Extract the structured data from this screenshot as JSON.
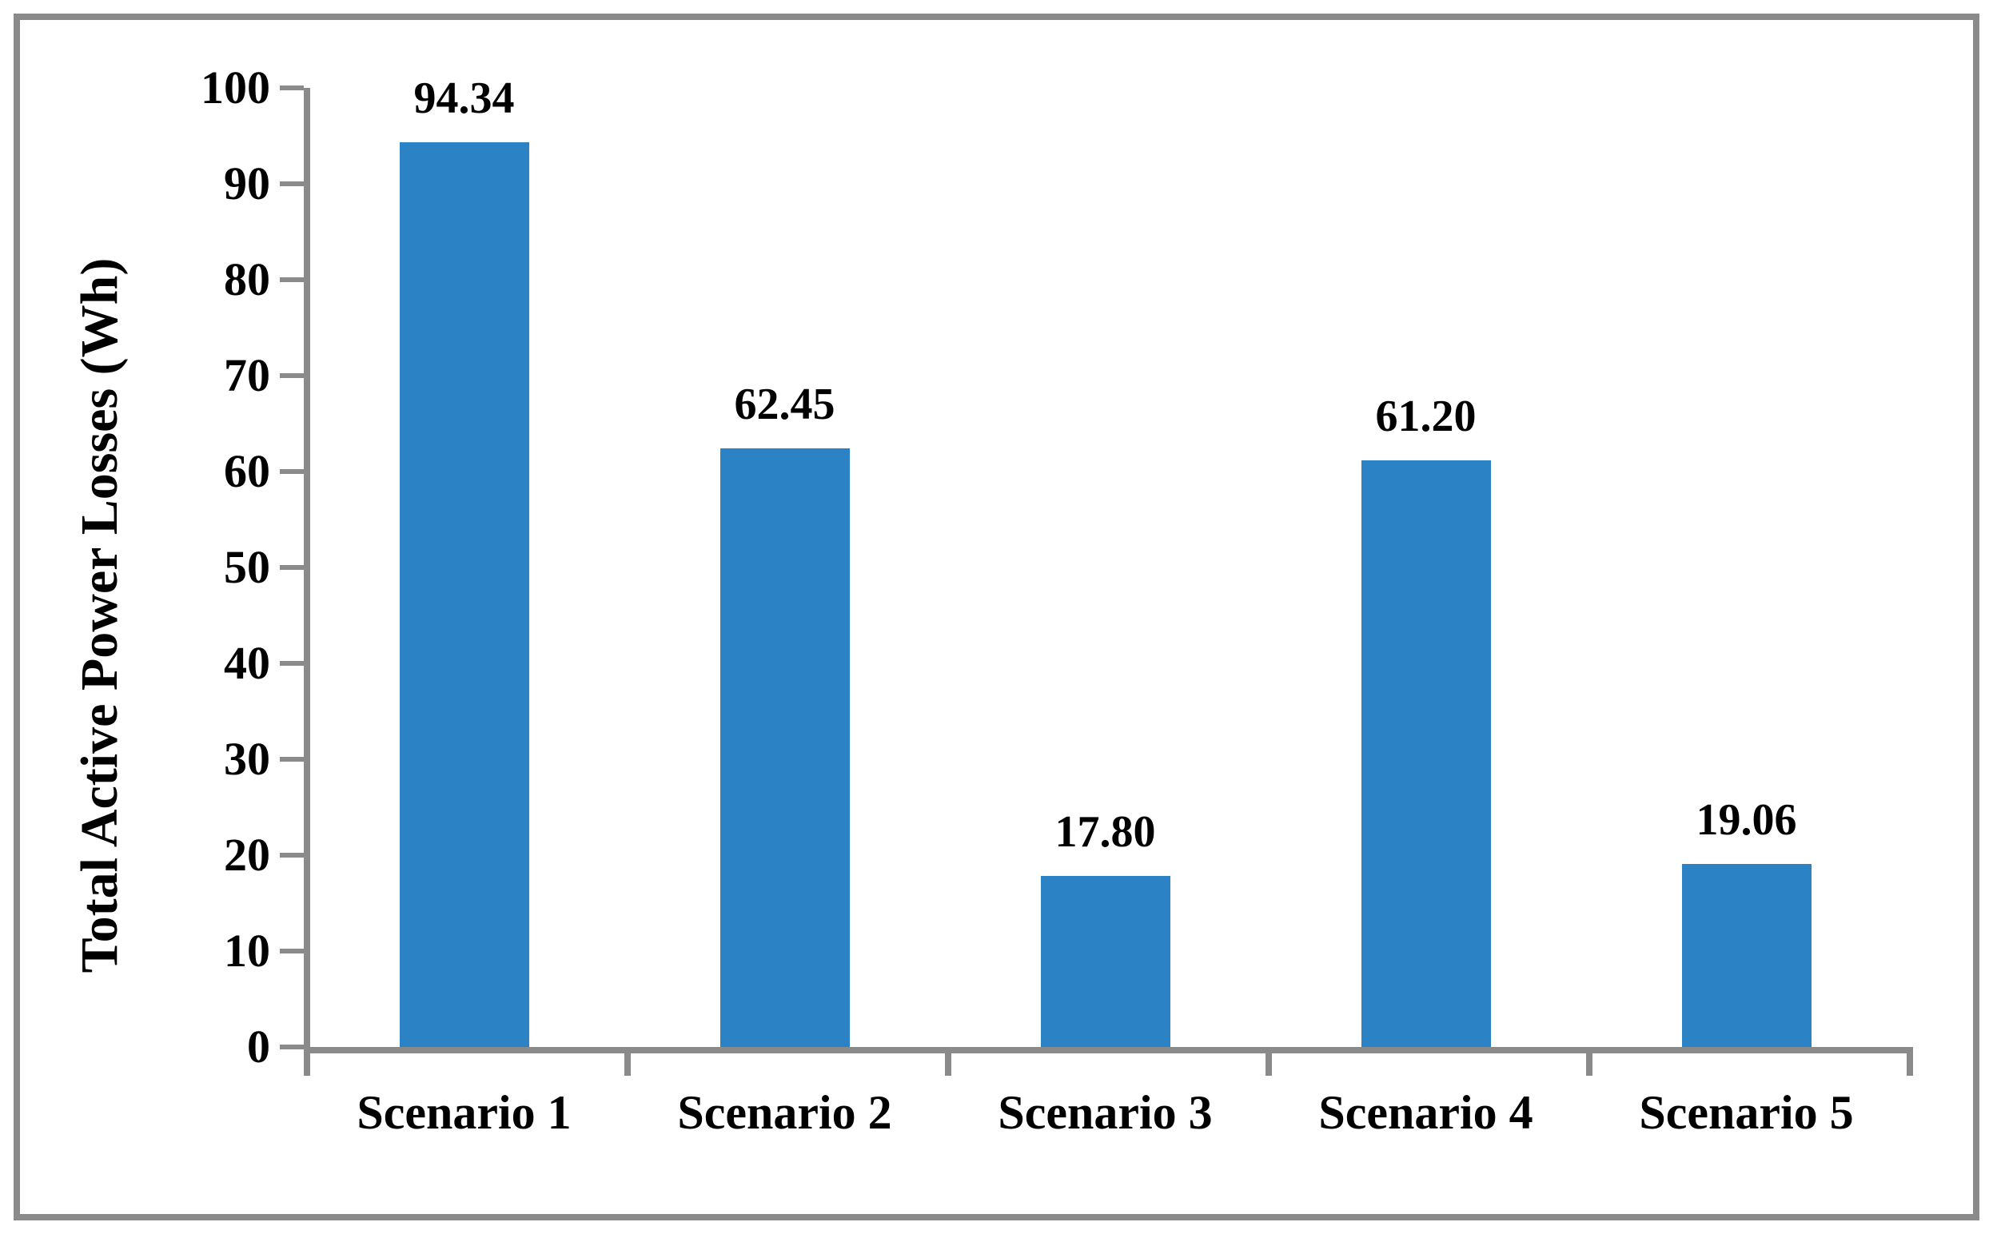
{
  "chart_data": {
    "type": "bar",
    "title": "",
    "categories": [
      "Scenario 1",
      "Scenario 2",
      "Scenario 3",
      "Scenario 4",
      "Scenario 5"
    ],
    "values": [
      94.34,
      62.45,
      17.8,
      61.2,
      19.06
    ],
    "value_labels": [
      "94.34",
      "62.45",
      "17.80",
      "61.20",
      "19.06"
    ],
    "xlabel": "",
    "ylabel": "Total Active Power Losses (Wh)",
    "ylim": [
      0,
      100
    ],
    "ytick_step": 10,
    "yticks": [
      0,
      10,
      20,
      30,
      40,
      50,
      60,
      70,
      80,
      90,
      100
    ],
    "grid": false,
    "legend": false,
    "bar_color": "#2B82C4",
    "axis_color": "#8A8A8A",
    "frame_color": "#8A8A8A",
    "text_color": "#000000",
    "background_color": "#FFFFFF"
  }
}
